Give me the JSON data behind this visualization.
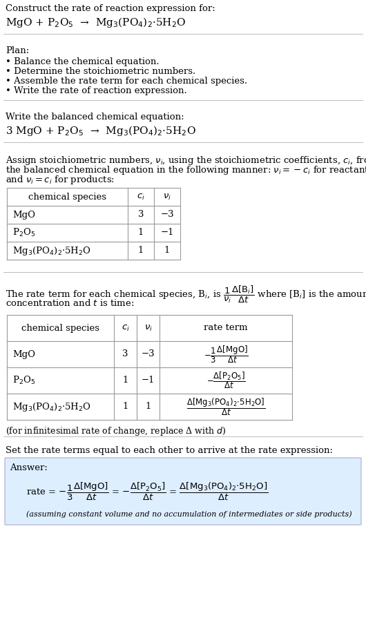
{
  "bg_color": "#ffffff",
  "text_color": "#000000",
  "title_line1": "Construct the rate of reaction expression for:",
  "reaction_unbalanced": "MgO + P$_2$O$_5$  →  Mg$_3$(PO$_4$)$_2$·5H$_2$O",
  "plan_header": "Plan:",
  "plan_items": [
    "• Balance the chemical equation.",
    "• Determine the stoichiometric numbers.",
    "• Assemble the rate term for each chemical species.",
    "• Write the rate of reaction expression."
  ],
  "balanced_header": "Write the balanced chemical equation:",
  "balanced_eq": "3 MgO + P$_2$O$_5$  →  Mg$_3$(PO$_4$)$_2$·5H$_2$O",
  "table1_cols": [
    "chemical species",
    "$c_i$",
    "$\\nu_i$"
  ],
  "table1_data": [
    [
      "MgO",
      "3",
      "−3"
    ],
    [
      "P$_2$O$_5$",
      "1",
      "−1"
    ],
    [
      "Mg$_3$(PO$_4$)$_2$·5H$_2$O",
      "1",
      "1"
    ]
  ],
  "table2_cols": [
    "chemical species",
    "$c_i$",
    "$\\nu_i$",
    "rate term"
  ],
  "table2_data": [
    [
      "MgO",
      "3",
      "−3"
    ],
    [
      "P$_2$O$_5$",
      "1",
      "−1"
    ],
    [
      "Mg$_3$(PO$_4$)$_2$·5H$_2$O",
      "1",
      "1"
    ]
  ],
  "infinitesimal_note": "(for infinitesimal rate of change, replace Δ with $d$)",
  "set_rate_header": "Set the rate terms equal to each other to arrive at the rate expression:",
  "answer_label": "Answer:",
  "answer_box_color": "#ddeeff",
  "answer_note": "(assuming constant volume and no accumulation of intermediates or side products)"
}
